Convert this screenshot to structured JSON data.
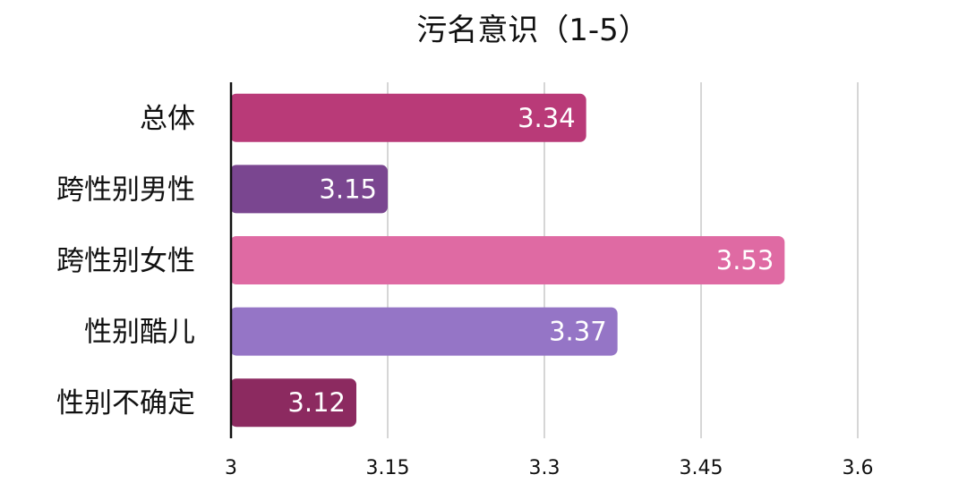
{
  "chart_data": {
    "type": "bar",
    "orientation": "horizontal",
    "title": "污名意识（1-5）",
    "xlabel": "",
    "ylabel": "",
    "categories": [
      "总体",
      "跨性别男性",
      "跨性别女性",
      "性别酷儿",
      "性别不确定"
    ],
    "values": [
      3.34,
      3.15,
      3.53,
      3.37,
      3.12
    ],
    "value_labels": [
      "3.34",
      "3.15",
      "3.53",
      "3.37",
      "3.12"
    ],
    "colors": [
      "#b93a78",
      "#7a4690",
      "#df6aa3",
      "#9575c6",
      "#8c2a60"
    ],
    "xlim": [
      3,
      3.6
    ],
    "xticks": [
      3,
      3.15,
      3.3,
      3.45,
      3.6
    ],
    "xtick_labels": [
      "3",
      "3.15",
      "3.3",
      "3.45",
      "3.6"
    ],
    "grid": "vertical",
    "legend": "none"
  }
}
